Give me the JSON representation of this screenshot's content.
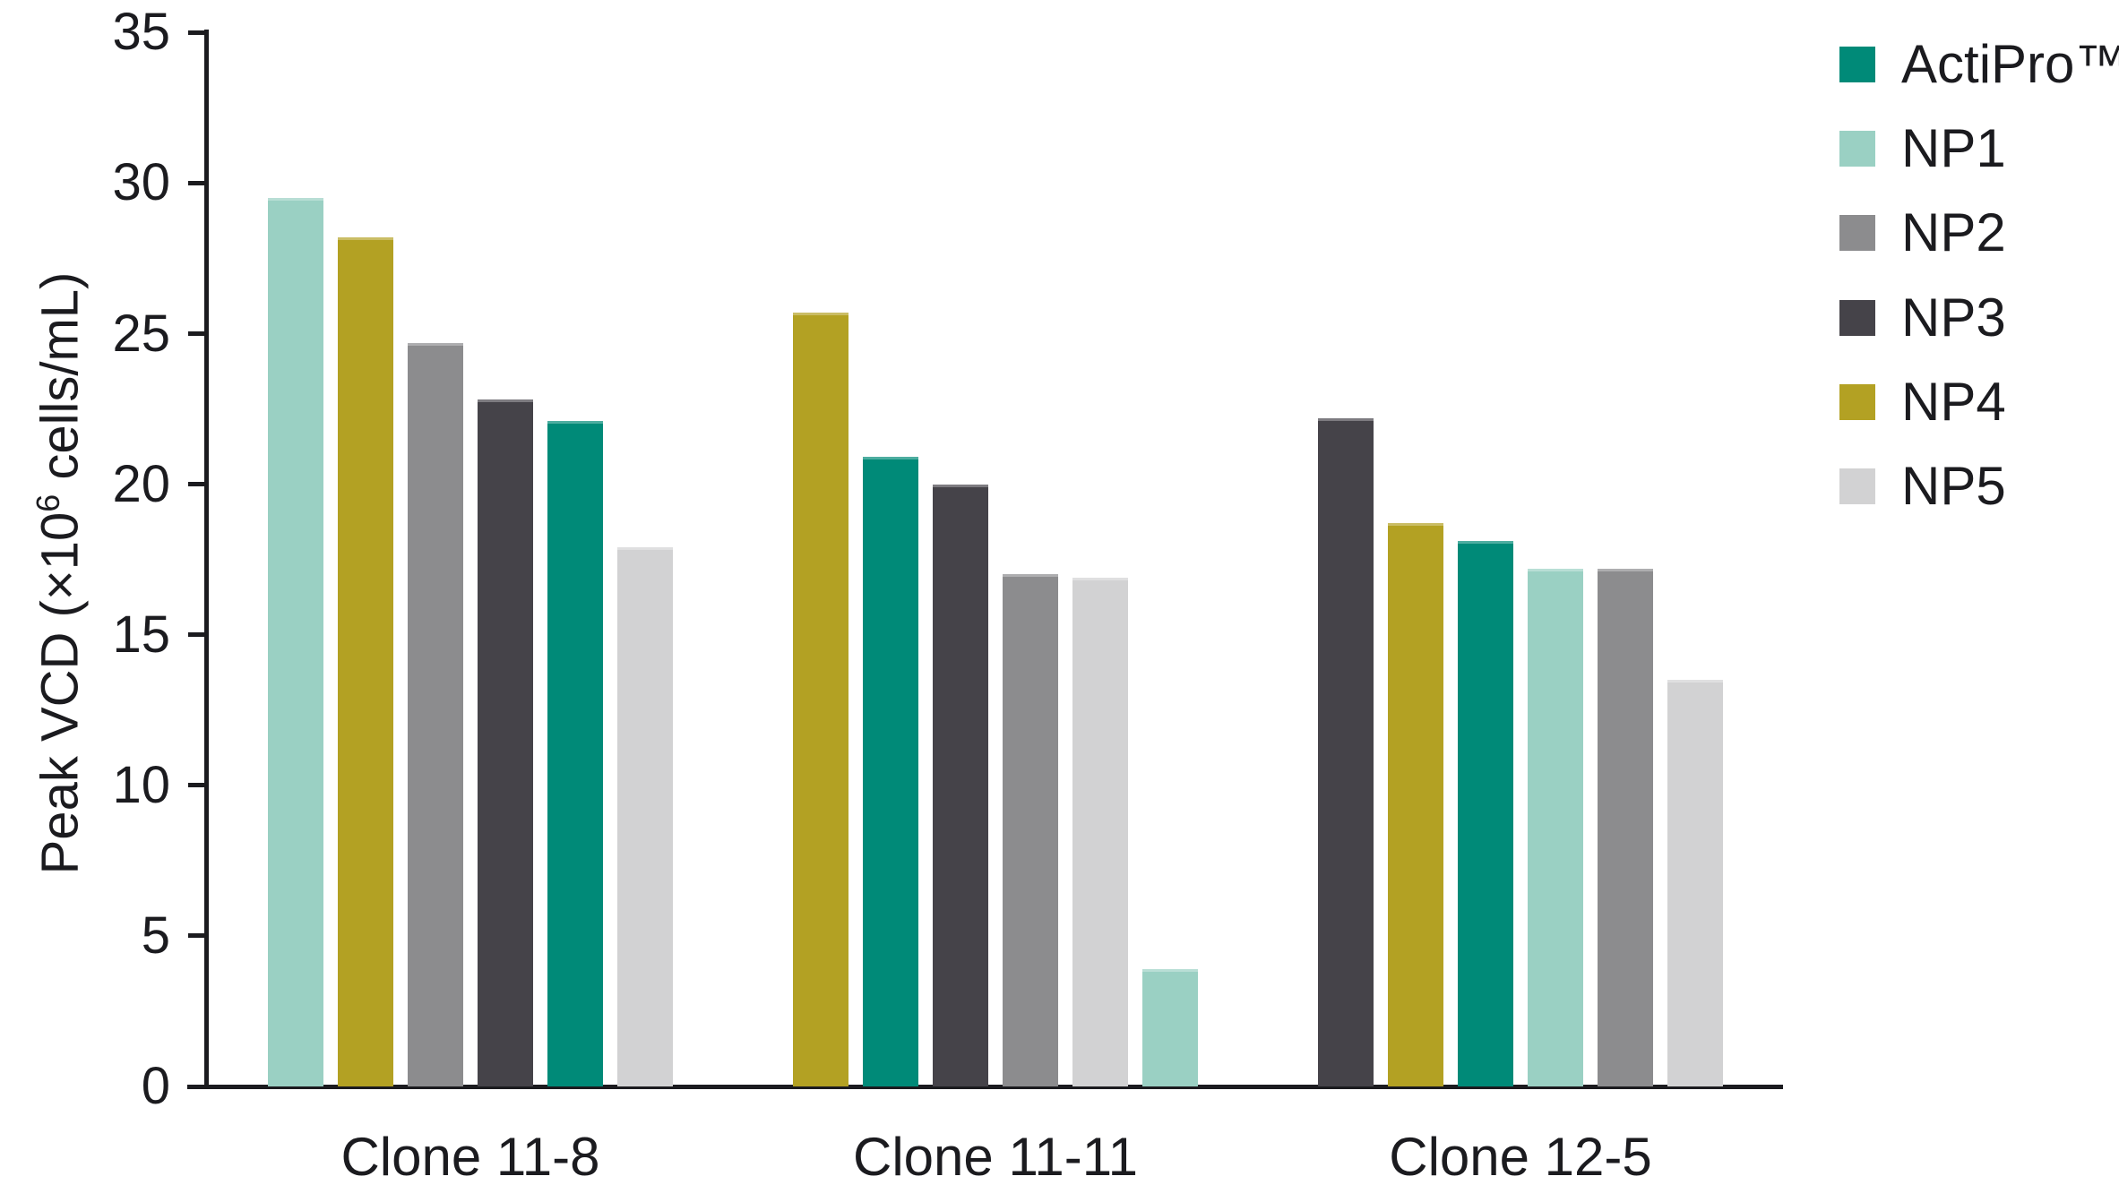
{
  "chart_data": {
    "type": "bar",
    "title": "",
    "xlabel": "",
    "ylabel": "Peak VCD (×10⁶ cells/mL)",
    "ylabel_parts": {
      "prefix": "Peak VCD (×10",
      "superscript": "6",
      "suffix": " cells/mL)"
    },
    "ylim": [
      0,
      35
    ],
    "yticks": [
      0,
      5,
      10,
      15,
      20,
      25,
      30,
      35
    ],
    "grid": false,
    "legend_position": "right-top",
    "categories": [
      "Clone 11-8",
      "Clone 11-11",
      "Clone 12-5"
    ],
    "series": [
      {
        "name": "ActiPro™",
        "color": "#008A78",
        "values": [
          22.1,
          20.9,
          18.1
        ]
      },
      {
        "name": "NP1",
        "color": "#9AD0C3",
        "values": [
          29.5,
          3.9,
          17.2
        ]
      },
      {
        "name": "NP2",
        "color": "#8C8C8E",
        "values": [
          24.7,
          17.0,
          17.2
        ]
      },
      {
        "name": "NP3",
        "color": "#454349",
        "values": [
          22.8,
          20.0,
          22.2
        ]
      },
      {
        "name": "NP4",
        "color": "#B3A123",
        "values": [
          28.2,
          25.7,
          18.7
        ]
      },
      {
        "name": "NP5",
        "color": "#D2D2D3",
        "values": [
          17.9,
          16.9,
          13.5
        ]
      }
    ],
    "bar_order_per_category": [
      [
        "NP1",
        "NP4",
        "NP2",
        "NP3",
        "ActiPro™",
        "NP5"
      ],
      [
        "NP4",
        "ActiPro™",
        "NP3",
        "NP2",
        "NP5",
        "NP1"
      ],
      [
        "NP3",
        "NP4",
        "ActiPro™",
        "NP1",
        "NP2",
        "NP5"
      ]
    ],
    "legend_items": [
      "ActiPro™",
      "NP1",
      "NP2",
      "NP3",
      "NP4",
      "NP5"
    ],
    "text_color": "#1B1B1F",
    "axis_color": "#1B1B1F",
    "background": "#FFFFFF"
  }
}
